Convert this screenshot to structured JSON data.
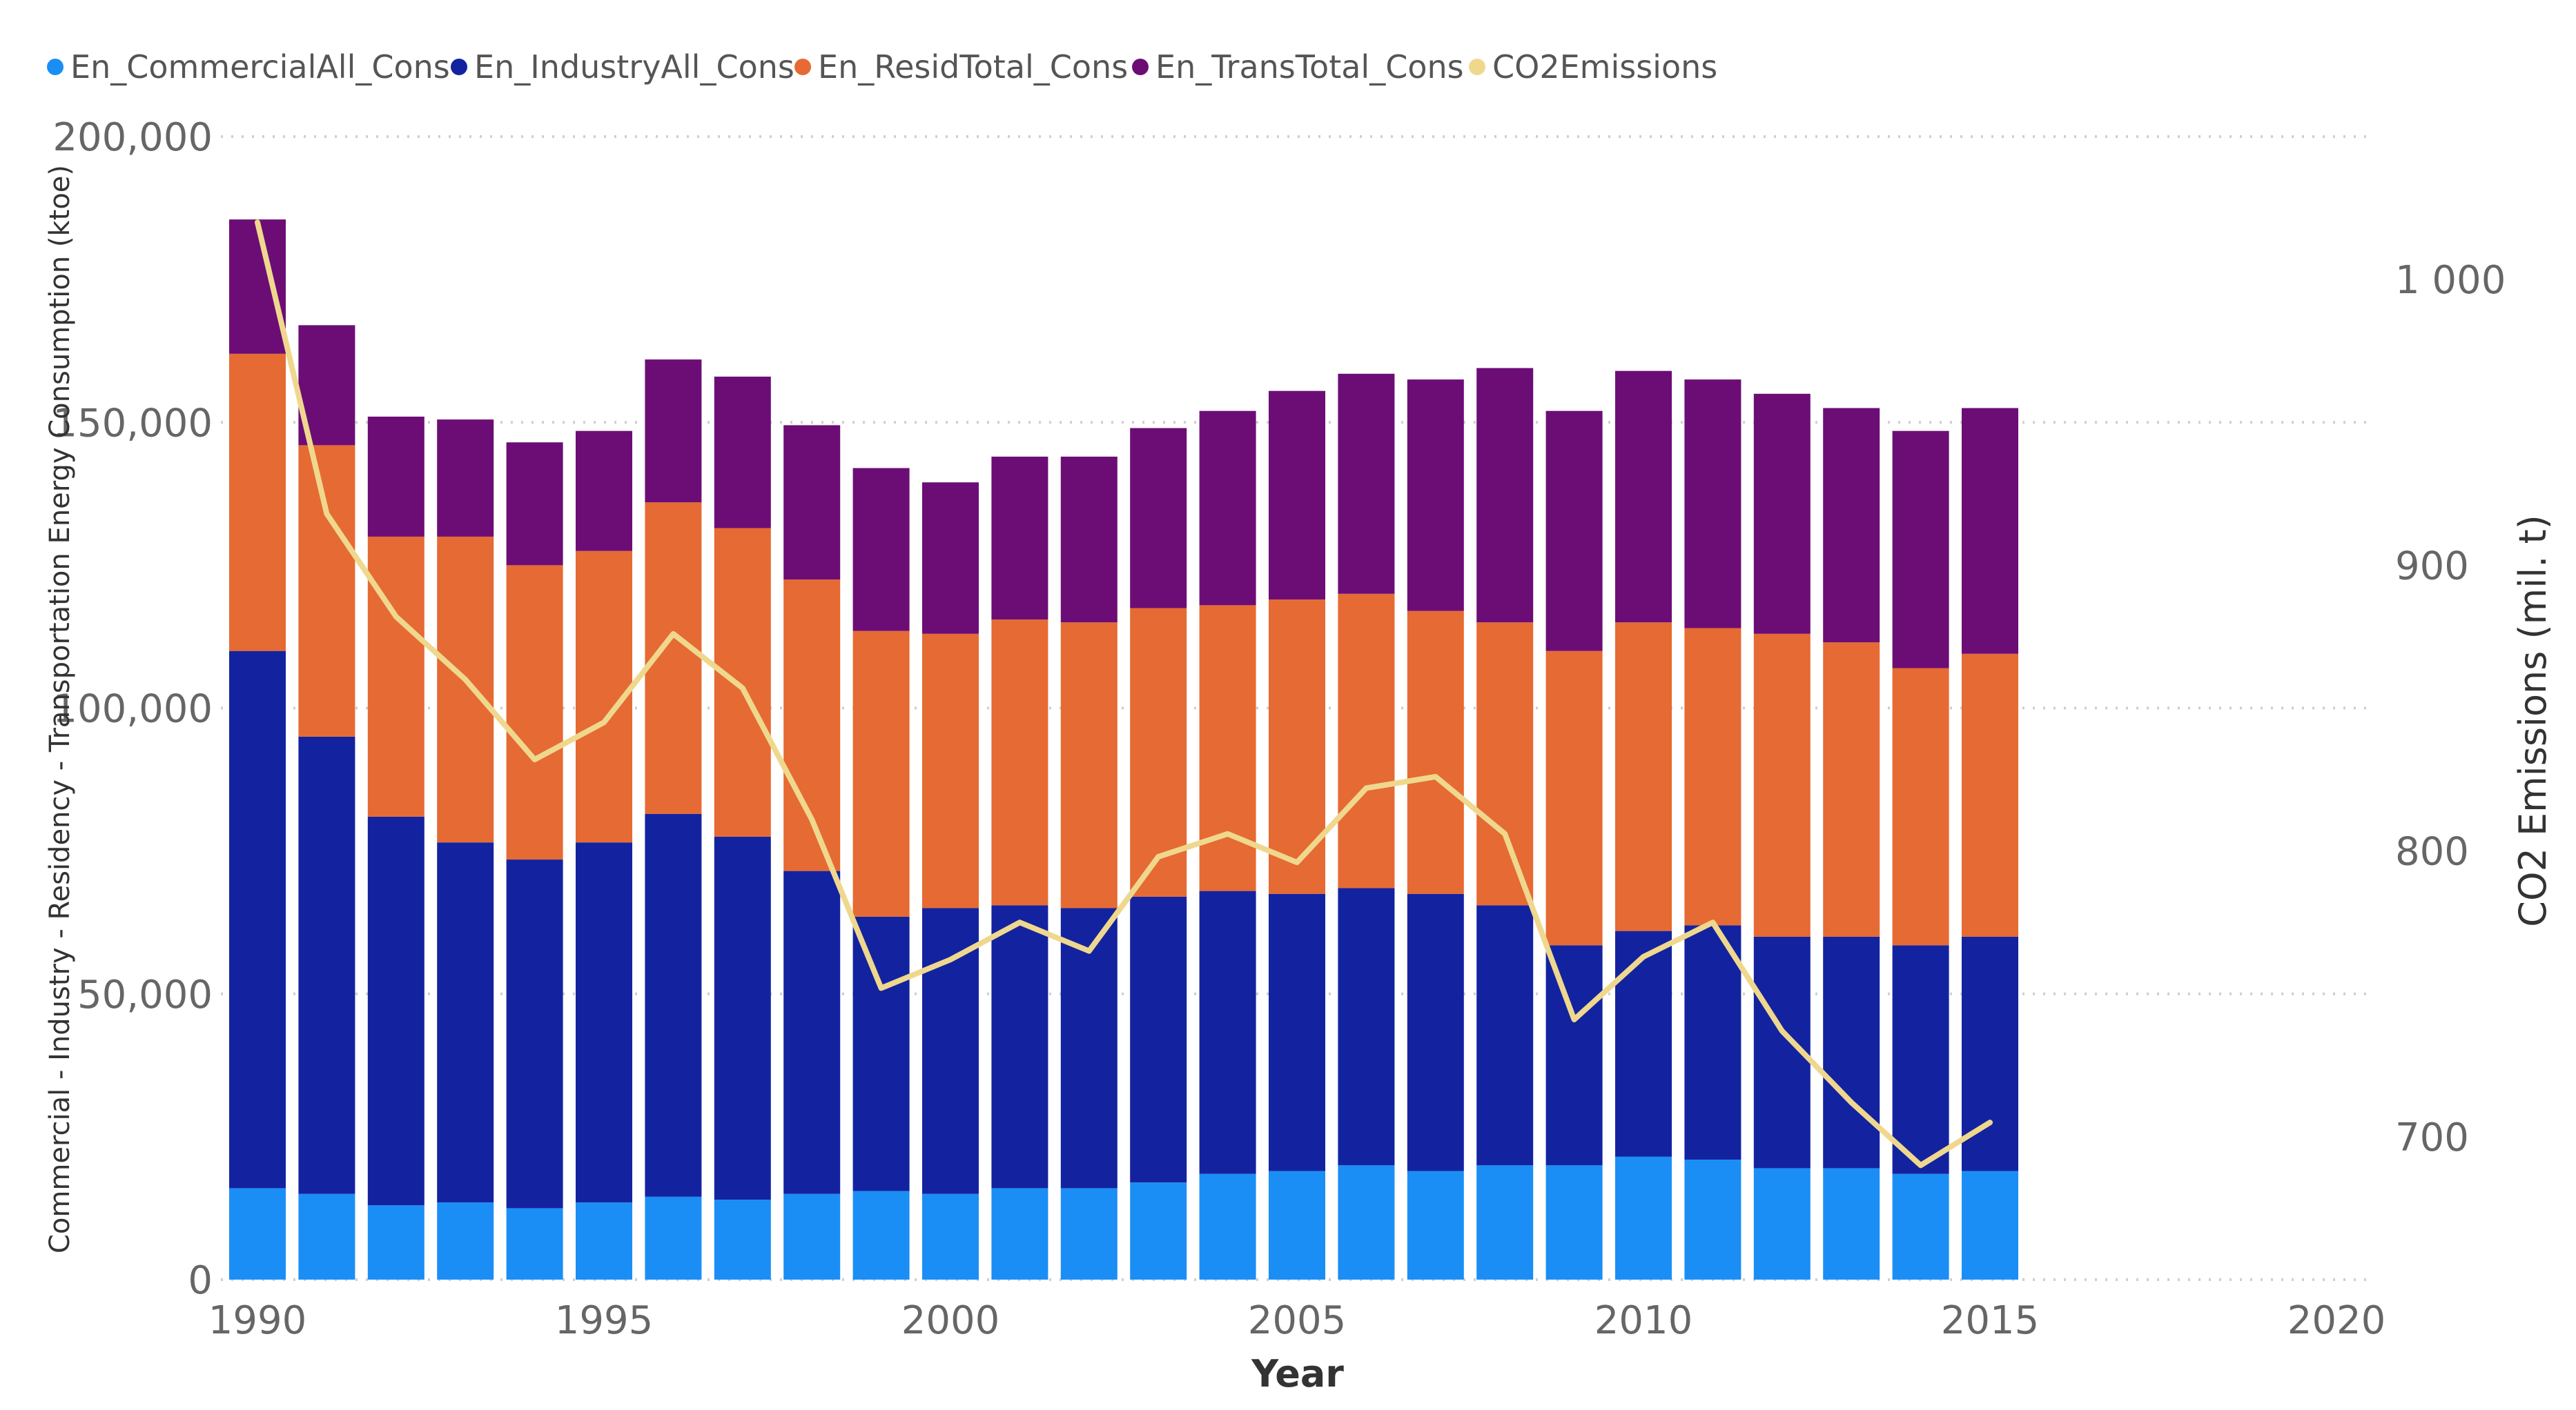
{
  "chart_data": {
    "type": "bar",
    "stacked": true,
    "title": "",
    "xlabel": "Year",
    "ylabel": "Commercial - Industry - Residency - Transportation Energy Consumption (ktoe)",
    "y2label": "CO2 Emissions (mil. t)",
    "xlim": [
      1990,
      2020
    ],
    "x_ticks": [
      1990,
      1995,
      2000,
      2005,
      2010,
      2015,
      2020
    ],
    "ylim": [
      0,
      200000
    ],
    "y_ticks": [
      0,
      50000,
      100000,
      150000,
      200000
    ],
    "y_tick_labels": [
      "0",
      "50,000",
      "100,000",
      "150,000",
      "200,000"
    ],
    "y2lim": [
      650,
      1050
    ],
    "y2_ticks": [
      700,
      800,
      900,
      1000
    ],
    "y2_tick_labels": [
      "700",
      "800",
      "900",
      "1 000"
    ],
    "legend_position": "top-left",
    "x": [
      1990,
      1991,
      1992,
      1993,
      1994,
      1995,
      1996,
      1997,
      1998,
      1999,
      2000,
      2001,
      2002,
      2003,
      2004,
      2005,
      2006,
      2007,
      2008,
      2009,
      2010,
      2011,
      2012,
      2013,
      2014,
      2015
    ],
    "series": [
      {
        "name": "En_CommercialAll_Cons",
        "color": "#1b8ef5",
        "values": [
          16000,
          15000,
          13000,
          13500,
          12500,
          13500,
          14500,
          14000,
          15000,
          15500,
          15000,
          16000,
          16000,
          17000,
          18500,
          19000,
          20000,
          19000,
          20000,
          20000,
          21500,
          21000,
          19500,
          19500,
          18500,
          19000
        ]
      },
      {
        "name": "En_IndustryAll_Cons",
        "color": "#13239f",
        "values": [
          94000,
          80000,
          68000,
          63000,
          61000,
          63000,
          67000,
          63500,
          56500,
          48000,
          50000,
          49500,
          49000,
          50000,
          49500,
          48500,
          48500,
          48500,
          45500,
          38500,
          39500,
          41000,
          40500,
          40500,
          40000,
          41000
        ]
      },
      {
        "name": "En_ResidTotal_Cons",
        "color": "#e66a33",
        "values": [
          52000,
          51000,
          49000,
          53500,
          51500,
          51000,
          54500,
          54000,
          51000,
          50000,
          48000,
          50000,
          50000,
          50500,
          50000,
          51500,
          51500,
          49500,
          49500,
          51500,
          54000,
          52000,
          53000,
          51500,
          48500,
          49500
        ]
      },
      {
        "name": "En_TransTotal_Cons",
        "color": "#6c0d76",
        "values": [
          23500,
          21000,
          21000,
          20500,
          21500,
          21000,
          25000,
          26500,
          27000,
          28500,
          26500,
          28500,
          29000,
          31500,
          34000,
          36500,
          38500,
          40500,
          44500,
          42000,
          44000,
          43500,
          42000,
          41000,
          41500,
          43000
        ]
      },
      {
        "name": "CO2Emissions",
        "color": "#efd88d",
        "type": "line",
        "axis": "y2",
        "values": [
          1020,
          918,
          882,
          860,
          832,
          845,
          876,
          857,
          811,
          752,
          762,
          775,
          765,
          798,
          806,
          796,
          822,
          826,
          806,
          741,
          763,
          775,
          737,
          712,
          690,
          705
        ]
      }
    ]
  }
}
